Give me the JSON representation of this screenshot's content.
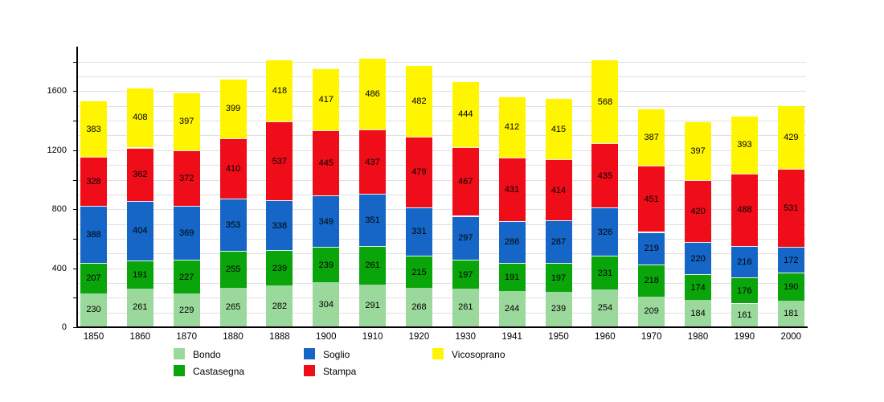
{
  "chart_data": {
    "type": "bar",
    "stacked": true,
    "title": "",
    "xlabel": "",
    "ylabel": "",
    "categories": [
      "1850",
      "1860",
      "1870",
      "1880",
      "1888",
      "1900",
      "1910",
      "1920",
      "1930",
      "1941",
      "1950",
      "1960",
      "1970",
      "1980",
      "1990",
      "2000"
    ],
    "series": [
      {
        "name": "Bondo",
        "color": "#9BD89B",
        "values": [
          230,
          261,
          229,
          265,
          282,
          304,
          291,
          268,
          261,
          244,
          239,
          254,
          209,
          184,
          161,
          181
        ]
      },
      {
        "name": "Castasegna",
        "color": "#0AA50A",
        "values": [
          207,
          191,
          227,
          255,
          239,
          239,
          261,
          215,
          197,
          191,
          197,
          231,
          218,
          174,
          176,
          190
        ]
      },
      {
        "name": "Soglio",
        "color": "#1566C6",
        "values": [
          388,
          404,
          369,
          353,
          338,
          349,
          351,
          331,
          297,
          286,
          287,
          326,
          219,
          220,
          216,
          172
        ]
      },
      {
        "name": "Stampa",
        "color": "#EE0D18",
        "values": [
          328,
          362,
          372,
          410,
          537,
          445,
          437,
          479,
          467,
          431,
          414,
          435,
          451,
          420,
          488,
          531
        ]
      },
      {
        "name": "Vicosoprano",
        "color": "#FFF500",
        "values": [
          383,
          408,
          397,
          399,
          418,
          417,
          486,
          482,
          444,
          412,
          415,
          568,
          387,
          397,
          393,
          429
        ]
      }
    ],
    "y_ticks": [
      0,
      400,
      800,
      1200,
      1600
    ],
    "ylim": [
      0,
      1880
    ],
    "grid": true,
    "grid_step": 100,
    "minor_tick_step": 200,
    "legend_position": "bottom",
    "colors": {
      "background": "#FFFFFF",
      "axis": "#000000",
      "grid": "#E0E0E0",
      "text": "#000000"
    }
  }
}
